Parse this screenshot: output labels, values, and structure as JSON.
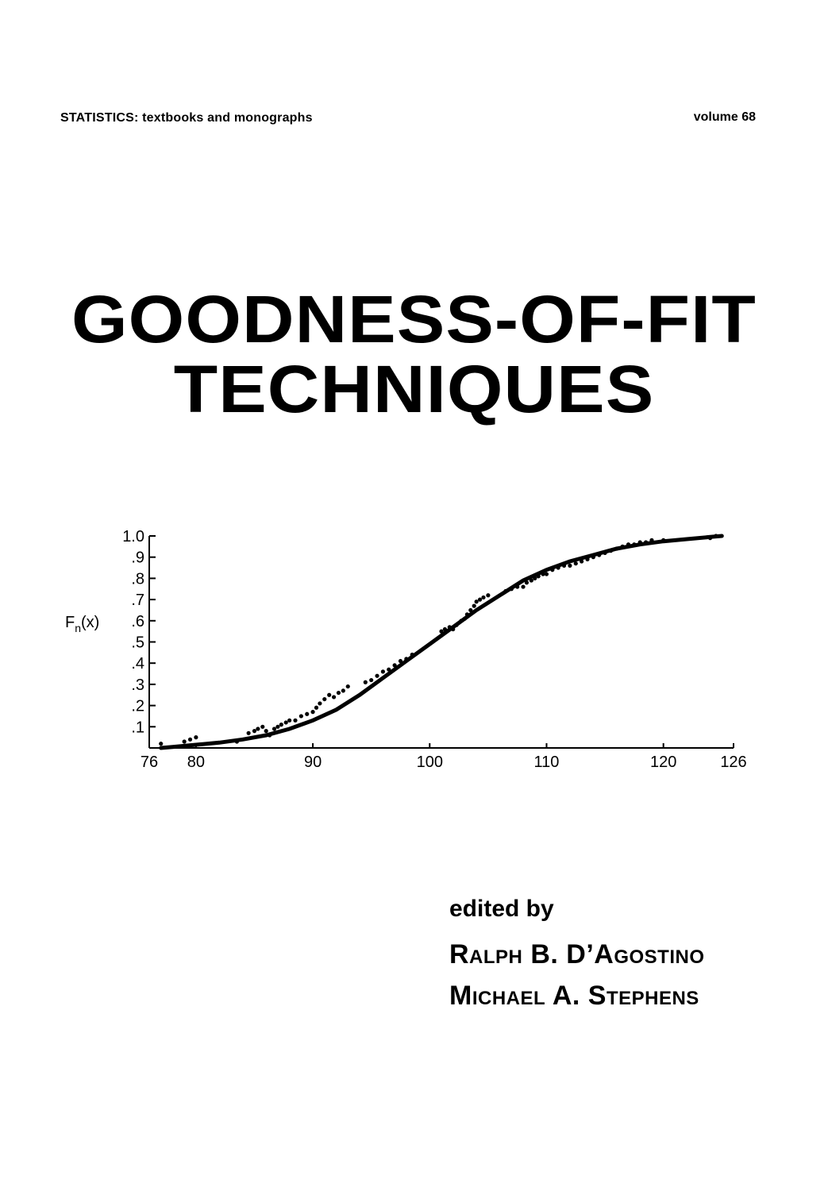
{
  "header": {
    "series": "STATISTICS: textbooks and monographs",
    "volume": "volume 68"
  },
  "title": {
    "line1": "GOODNESS-OF-FIT",
    "line2": "TECHNIQUES"
  },
  "chart_data": {
    "type": "line",
    "ylabel_main": "F",
    "ylabel_sub": "n",
    "ylabel_rest": "(x)",
    "xlim": [
      76,
      126
    ],
    "ylim": [
      0,
      1.0
    ],
    "x_ticks": [
      "76",
      "80",
      "90",
      "100",
      "110",
      "120",
      "126"
    ],
    "x_tick_values": [
      76,
      80,
      90,
      100,
      110,
      120,
      126
    ],
    "y_ticks": [
      ".1",
      ".2",
      ".3",
      ".4",
      ".5",
      ".6",
      ".7",
      ".8",
      ".9",
      "1.0"
    ],
    "y_tick_values": [
      0.1,
      0.2,
      0.3,
      0.4,
      0.5,
      0.6,
      0.7,
      0.8,
      0.9,
      1.0
    ],
    "curve": {
      "x": [
        77,
        78,
        80,
        82,
        84,
        86,
        88,
        90,
        92,
        94,
        96,
        98,
        100,
        102,
        104,
        106,
        108,
        110,
        112,
        114,
        116,
        118,
        120,
        122,
        124,
        125
      ],
      "y": [
        0.0,
        0.005,
        0.015,
        0.025,
        0.04,
        0.06,
        0.09,
        0.13,
        0.18,
        0.25,
        0.33,
        0.41,
        0.49,
        0.57,
        0.65,
        0.72,
        0.79,
        0.84,
        0.88,
        0.91,
        0.94,
        0.96,
        0.975,
        0.985,
        0.995,
        1.0
      ]
    },
    "points": {
      "x": [
        77,
        79,
        79.5,
        80,
        83.5,
        84.5,
        85,
        85.3,
        85.7,
        86,
        86.3,
        86.7,
        87,
        87.3,
        87.7,
        88,
        88.5,
        89,
        89.5,
        90,
        90.3,
        90.6,
        91,
        91.4,
        91.8,
        92.2,
        92.6,
        93,
        94.5,
        95,
        95.5,
        96,
        96.5,
        97,
        97.5,
        98,
        98.5,
        101,
        101.3,
        101.7,
        102,
        102.3,
        102.7,
        103,
        103.2,
        103.5,
        103.8,
        104,
        104.3,
        104.6,
        105,
        106.5,
        107,
        107.5,
        108,
        108.3,
        108.7,
        109,
        109.3,
        109.7,
        110,
        110.5,
        111,
        111.5,
        112,
        112.5,
        113,
        113.5,
        114,
        114.5,
        115,
        115.5,
        116,
        116.5,
        117,
        117.5,
        118,
        118.5,
        119,
        120,
        124,
        124.5
      ],
      "y": [
        0.02,
        0.03,
        0.04,
        0.05,
        0.03,
        0.07,
        0.08,
        0.09,
        0.1,
        0.08,
        0.06,
        0.09,
        0.1,
        0.11,
        0.12,
        0.13,
        0.13,
        0.15,
        0.16,
        0.17,
        0.19,
        0.21,
        0.23,
        0.25,
        0.24,
        0.26,
        0.27,
        0.29,
        0.31,
        0.32,
        0.34,
        0.36,
        0.37,
        0.39,
        0.41,
        0.42,
        0.44,
        0.55,
        0.56,
        0.57,
        0.56,
        0.58,
        0.6,
        0.61,
        0.63,
        0.65,
        0.67,
        0.69,
        0.7,
        0.71,
        0.72,
        0.74,
        0.75,
        0.76,
        0.76,
        0.78,
        0.79,
        0.8,
        0.81,
        0.82,
        0.82,
        0.84,
        0.85,
        0.86,
        0.86,
        0.87,
        0.88,
        0.89,
        0.9,
        0.91,
        0.92,
        0.93,
        0.94,
        0.95,
        0.96,
        0.96,
        0.97,
        0.97,
        0.98,
        0.98,
        0.99,
        1.0
      ]
    }
  },
  "editors": {
    "label": "edited by",
    "names": [
      "Ralph B. D’Agostino",
      "Michael A. Stephens"
    ]
  }
}
